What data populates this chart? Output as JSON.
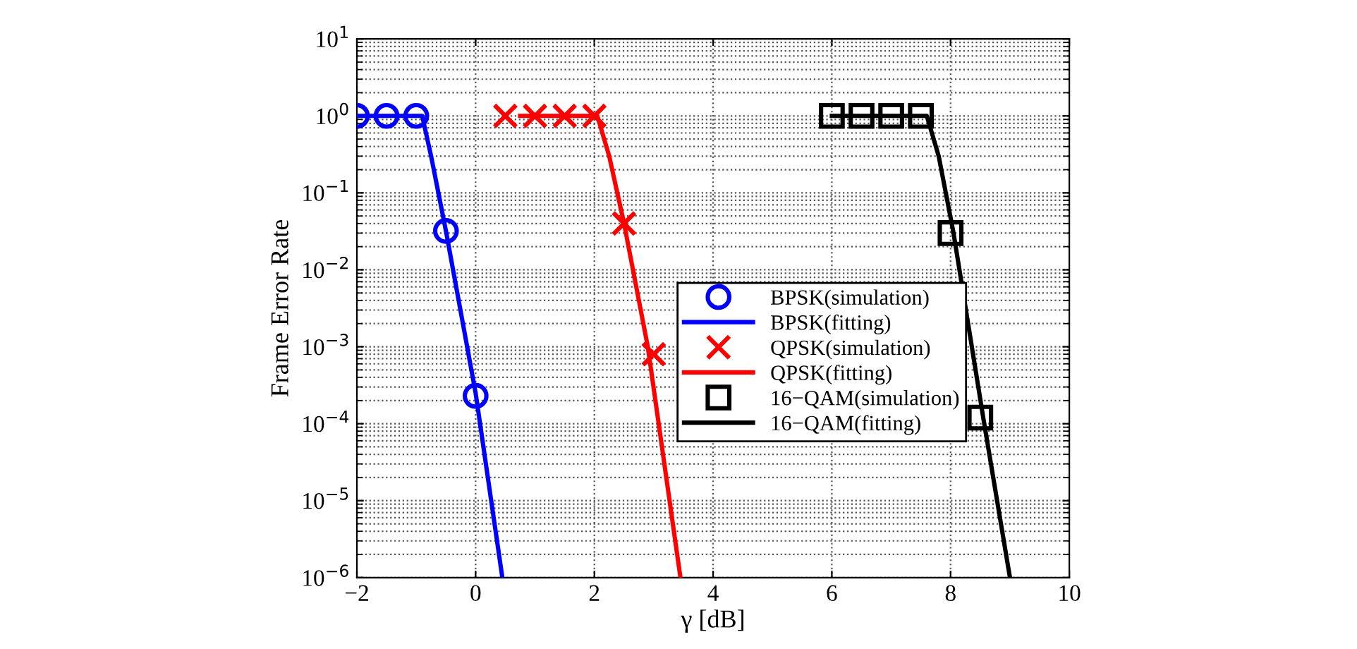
{
  "chart_data": {
    "type": "line",
    "xlabel": "γ [dB]",
    "ylabel": "Frame Error Rate",
    "log": "y",
    "xlim": [
      -2,
      10
    ],
    "xticks": [
      -2,
      0,
      2,
      4,
      6,
      8,
      10
    ],
    "ylim": [
      1e-06,
      10
    ],
    "yticks": [
      {
        "value": 1e-06,
        "label": "10$^{−6}$"
      },
      {
        "value": 1e-05,
        "label": "10$^{−5}$"
      },
      {
        "value": 0.0001,
        "label": "10$^{−4}$"
      },
      {
        "value": 0.001,
        "label": "10$^{−3}$"
      },
      {
        "value": 0.01,
        "label": "10$^{−2}$"
      },
      {
        "value": 0.1,
        "label": "10$^{−1}$"
      },
      {
        "value": 1,
        "label": "10$^{0}$"
      },
      {
        "value": 10,
        "label": "10$^{1}$"
      }
    ],
    "grid": true,
    "legend": "center",
    "series": [
      {
        "name": "BPSK(simulation)",
        "type": "scatter",
        "marker": "circle",
        "color": "#0000ff",
        "x": [
          -2,
          -1.5,
          -1,
          -0.5,
          0
        ],
        "values": [
          1,
          1,
          1,
          0.032,
          0.00023
        ]
      },
      {
        "name": "BPSK(fitting)",
        "color": "#0000ff",
        "x": [
          -2,
          -0.9,
          -0.75,
          -0.5,
          0,
          0.45
        ],
        "values": [
          1,
          1,
          0.3,
          0.032,
          0.00025,
          1e-06
        ]
      },
      {
        "name": "QPSK(simulation)",
        "type": "scatter",
        "marker": "cross",
        "color": "#ff0000",
        "x": [
          0.5,
          1,
          1.5,
          2,
          2.5,
          3
        ],
        "values": [
          1,
          1,
          1,
          1,
          0.04,
          0.0008
        ]
      },
      {
        "name": "QPSK(fitting)",
        "color": "#ff0000",
        "x": [
          0.75,
          2.05,
          2.25,
          2.5,
          2.9,
          3.45
        ],
        "values": [
          1,
          1,
          0.3,
          0.04,
          0.001,
          1e-06
        ]
      },
      {
        "name": "16−QAM(simulation)",
        "type": "scatter",
        "marker": "square",
        "color": "#000000",
        "x": [
          6,
          6.5,
          7,
          7.5,
          8,
          8.5
        ],
        "values": [
          1,
          1,
          1,
          1,
          0.03,
          0.00012
        ]
      },
      {
        "name": "16−QAM(fitting)",
        "color": "#000000",
        "x": [
          6,
          7.6,
          7.8,
          8.05,
          8.55,
          9
        ],
        "values": [
          1,
          1,
          0.3,
          0.03,
          0.00012,
          1e-06
        ]
      }
    ]
  }
}
